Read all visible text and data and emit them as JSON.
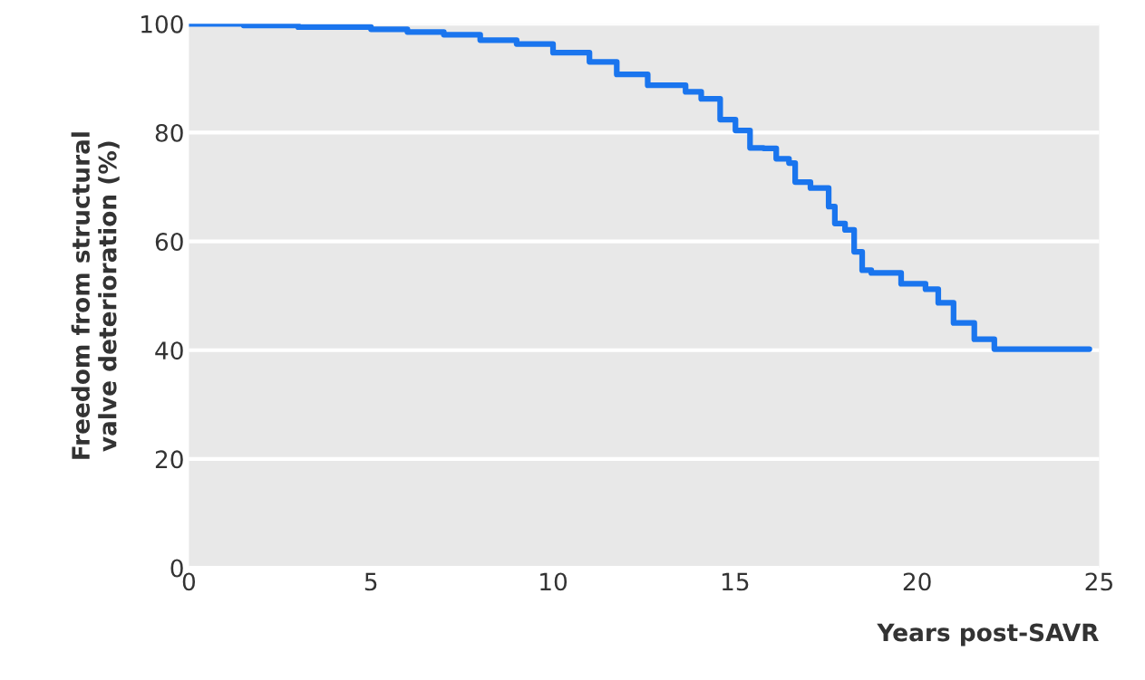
{
  "chart_data": {
    "type": "step",
    "xlabel": "Years post-SAVR",
    "ylabel": "Freedom from structural\nvalve deterioration (%)",
    "x": [
      0,
      1.5,
      3,
      5,
      6,
      7,
      8,
      9,
      10,
      11,
      11.75,
      12.6,
      13.64,
      14.07,
      14.59,
      15.01,
      15.41,
      15.78,
      16.13,
      16.48,
      16.65,
      17.07,
      17.57,
      17.74,
      18.02,
      18.27,
      18.49,
      18.74,
      19.56,
      20.23,
      20.58,
      21.0,
      21.57,
      22.12,
      24.73
    ],
    "series": [
      {
        "color": "#1a75ee",
        "values": [
          100,
          99.7,
          99.4,
          99,
          98.5,
          98,
          97,
          96.3,
          94.7,
          93,
          90.7,
          88.7,
          87.5,
          86.2,
          82.4,
          80.4,
          77.2,
          77.1,
          75.2,
          74.4,
          70.9,
          69.8,
          66.4,
          63.3,
          62.1,
          58.1,
          54.7,
          54.2,
          52.2,
          51.2,
          48.7,
          45,
          42,
          40.2,
          40.2
        ]
      }
    ],
    "xlim": [
      0,
      25
    ],
    "ylim": [
      0,
      100
    ],
    "xticks": [
      0,
      5,
      10,
      15,
      20,
      25
    ],
    "yticks": [
      0,
      20,
      40,
      60,
      80,
      100
    ],
    "grid": "y",
    "legend": false,
    "marker": "none",
    "line_style": "solid"
  }
}
